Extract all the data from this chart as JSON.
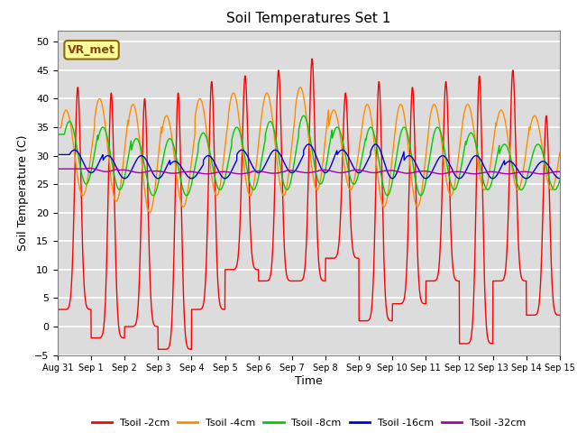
{
  "title": "Soil Temperatures Set 1",
  "xlabel": "Time",
  "ylabel": "Soil Temperature (C)",
  "ylim": [
    -5,
    52
  ],
  "yticks": [
    -5,
    0,
    5,
    10,
    15,
    20,
    25,
    30,
    35,
    40,
    45,
    50
  ],
  "annotation_text": "VR_met",
  "legend_labels": [
    "Tsoil -2cm",
    "Tsoil -4cm",
    "Tsoil -8cm",
    "Tsoil -16cm",
    "Tsoil -32cm"
  ],
  "line_colors": [
    "#FF0000",
    "#FF8C00",
    "#00CC00",
    "#0000DD",
    "#AA00AA"
  ],
  "background_color": "#DCDCDC",
  "xtick_labels": [
    "Aug 31",
    "Sep 1",
    "Sep 2",
    "Sep 3",
    "Sep 4",
    "Sep 5",
    "Sep 6",
    "Sep 7",
    "Sep 8",
    "Sep 9",
    "Sep 10",
    "Sep 11",
    "Sep 12",
    "Sep 13",
    "Sep 14",
    "Sep 15"
  ],
  "peaks_2cm": [
    42,
    41,
    40,
    41,
    43,
    44,
    45,
    47,
    41,
    43,
    42,
    43,
    44,
    45,
    37
  ],
  "troughs_2cm": [
    3,
    -2,
    0,
    -4,
    3,
    10,
    8,
    8,
    12,
    1,
    4,
    8,
    -3,
    8,
    2
  ],
  "peaks_4cm": [
    38,
    40,
    39,
    37,
    40,
    41,
    41,
    42,
    38,
    39,
    39,
    39,
    39,
    38,
    37
  ],
  "troughs_4cm": [
    23,
    22,
    20,
    21,
    23,
    23,
    23,
    24,
    24,
    21,
    21,
    23,
    24,
    24,
    24
  ],
  "peaks_8cm": [
    36,
    35,
    33,
    33,
    34,
    35,
    36,
    37,
    35,
    35,
    35,
    35,
    34,
    32,
    32
  ],
  "troughs_8cm": [
    25,
    24,
    23,
    23,
    24,
    24,
    24,
    25,
    25,
    23,
    23,
    24,
    24,
    24,
    24
  ],
  "peaks_16cm": [
    31,
    30,
    30,
    29,
    30,
    31,
    31,
    32,
    31,
    32,
    30,
    30,
    30,
    29,
    29
  ],
  "troughs_16cm": [
    27,
    26,
    26,
    26,
    26,
    27,
    27,
    27,
    27,
    26,
    26,
    26,
    26,
    26,
    26
  ],
  "peaks_32cm": [
    27.8,
    27.5,
    27.3,
    27.2,
    27.2,
    27.3,
    27.4,
    27.5,
    27.5,
    27.4,
    27.3,
    27.2,
    27.2,
    27.2,
    27.2
  ],
  "troughs_32cm": [
    27.2,
    27.0,
    26.9,
    26.8,
    26.8,
    26.9,
    27.0,
    27.0,
    27.0,
    26.9,
    26.8,
    26.8,
    26.8,
    26.8,
    26.8
  ]
}
